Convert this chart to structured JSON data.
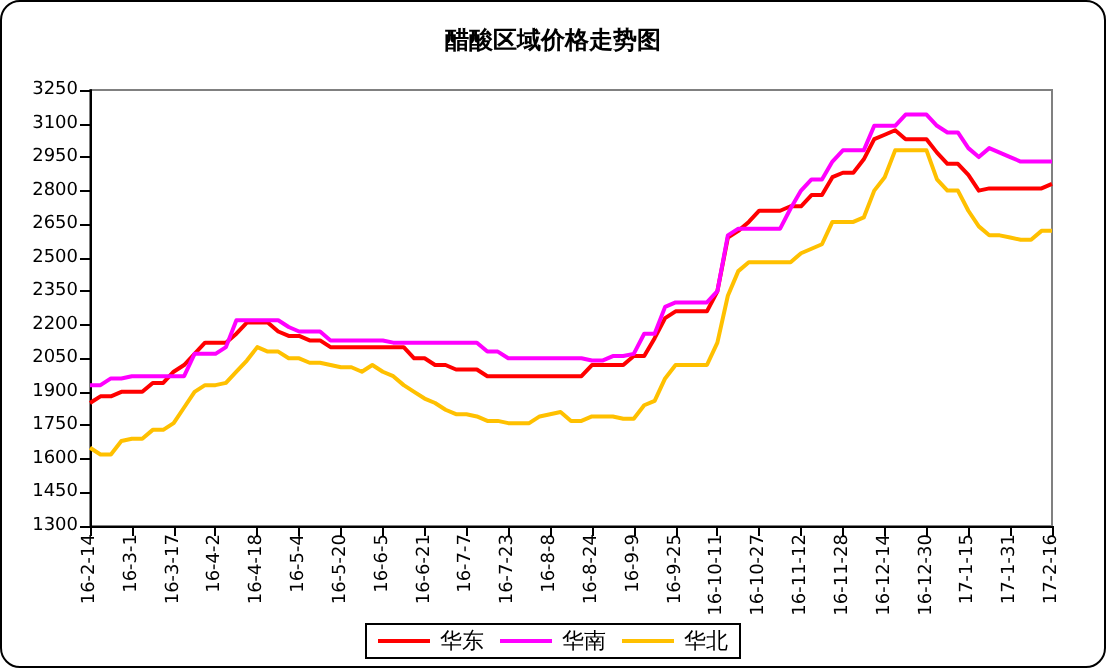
{
  "chart_data": {
    "type": "line",
    "title": "醋酸区域价格走势图",
    "categories": [
      "16-2-14",
      null,
      null,
      null,
      "16-3-1",
      null,
      null,
      null,
      "16-3-17",
      null,
      null,
      null,
      "16-4-2",
      null,
      null,
      null,
      "16-4-18",
      null,
      null,
      null,
      "16-5-4",
      null,
      null,
      null,
      "16-5-20",
      null,
      null,
      null,
      "16-6-5",
      null,
      null,
      null,
      "16-6-21",
      null,
      null,
      null,
      "16-7-7",
      null,
      null,
      null,
      "16-7-23",
      null,
      null,
      null,
      "16-8-8",
      null,
      null,
      null,
      "16-8-24",
      null,
      null,
      null,
      "16-9-9",
      null,
      null,
      null,
      "16-9-25",
      null,
      null,
      null,
      "16-10-11",
      null,
      null,
      null,
      "16-10-27",
      null,
      null,
      null,
      "16-11-12",
      null,
      null,
      null,
      "16-11-28",
      null,
      null,
      null,
      "16-12-14",
      null,
      null,
      null,
      "16-12-30",
      null,
      null,
      null,
      "17-1-15",
      null,
      null,
      null,
      "17-1-31",
      null,
      null,
      null,
      "17-2-16"
    ],
    "series": [
      {
        "name": "华东",
        "color": "#ff0000",
        "values": [
          1850,
          1880,
          1880,
          1900,
          1900,
          1900,
          1940,
          1940,
          1990,
          2020,
          2070,
          2120,
          2120,
          2120,
          2160,
          2210,
          2210,
          2210,
          2170,
          2150,
          2150,
          2130,
          2130,
          2100,
          2100,
          2100,
          2100,
          2100,
          2100,
          2100,
          2100,
          2050,
          2050,
          2020,
          2020,
          2000,
          2000,
          2000,
          1970,
          1970,
          1970,
          1970,
          1970,
          1970,
          1970,
          1970,
          1970,
          1970,
          2020,
          2020,
          2020,
          2020,
          2060,
          2060,
          2140,
          2230,
          2260,
          2260,
          2260,
          2260,
          2350,
          2590,
          2620,
          2660,
          2710,
          2710,
          2710,
          2730,
          2730,
          2780,
          2780,
          2860,
          2880,
          2880,
          2940,
          3030,
          3050,
          3070,
          3030,
          3030,
          3030,
          2970,
          2920,
          2920,
          2870,
          2800,
          2810,
          2810,
          2810,
          2810,
          2810,
          2810,
          2830
        ]
      },
      {
        "name": "华南",
        "color": "#ff00ff",
        "values": [
          1930,
          1930,
          1960,
          1960,
          1970,
          1970,
          1970,
          1970,
          1970,
          1970,
          2070,
          2070,
          2070,
          2100,
          2220,
          2220,
          2220,
          2220,
          2220,
          2190,
          2170,
          2170,
          2170,
          2130,
          2130,
          2130,
          2130,
          2130,
          2130,
          2120,
          2120,
          2120,
          2120,
          2120,
          2120,
          2120,
          2120,
          2120,
          2080,
          2080,
          2050,
          2050,
          2050,
          2050,
          2050,
          2050,
          2050,
          2050,
          2040,
          2040,
          2060,
          2060,
          2070,
          2160,
          2160,
          2280,
          2300,
          2300,
          2300,
          2300,
          2350,
          2600,
          2630,
          2630,
          2630,
          2630,
          2630,
          2720,
          2800,
          2850,
          2850,
          2930,
          2980,
          2980,
          2980,
          3090,
          3090,
          3090,
          3140,
          3140,
          3140,
          3090,
          3060,
          3060,
          2990,
          2950,
          2990,
          2970,
          2950,
          2930,
          2930,
          2930,
          2930
        ]
      },
      {
        "name": "华北",
        "color": "#ffc000",
        "values": [
          1650,
          1620,
          1620,
          1680,
          1690,
          1690,
          1730,
          1730,
          1760,
          1830,
          1900,
          1930,
          1930,
          1940,
          1990,
          2040,
          2100,
          2080,
          2080,
          2050,
          2050,
          2030,
          2030,
          2020,
          2010,
          2010,
          1990,
          2020,
          1990,
          1970,
          1930,
          1900,
          1870,
          1850,
          1820,
          1800,
          1800,
          1790,
          1770,
          1770,
          1760,
          1760,
          1760,
          1790,
          1800,
          1810,
          1770,
          1770,
          1790,
          1790,
          1790,
          1780,
          1780,
          1840,
          1860,
          1960,
          2020,
          2020,
          2020,
          2020,
          2120,
          2330,
          2440,
          2480,
          2480,
          2480,
          2480,
          2480,
          2520,
          2540,
          2560,
          2660,
          2660,
          2660,
          2680,
          2800,
          2860,
          2980,
          2980,
          2980,
          2980,
          2850,
          2800,
          2800,
          2710,
          2640,
          2600,
          2600,
          2590,
          2580,
          2580,
          2620,
          2620
        ]
      }
    ],
    "ylim": [
      1300,
      3250
    ],
    "yticks": [
      1300,
      1450,
      1600,
      1750,
      1900,
      2050,
      2200,
      2350,
      2500,
      2650,
      2800,
      2950,
      3100,
      3250
    ],
    "grid": false,
    "legend": "bottom",
    "marker": "none",
    "line_style": "solid"
  }
}
